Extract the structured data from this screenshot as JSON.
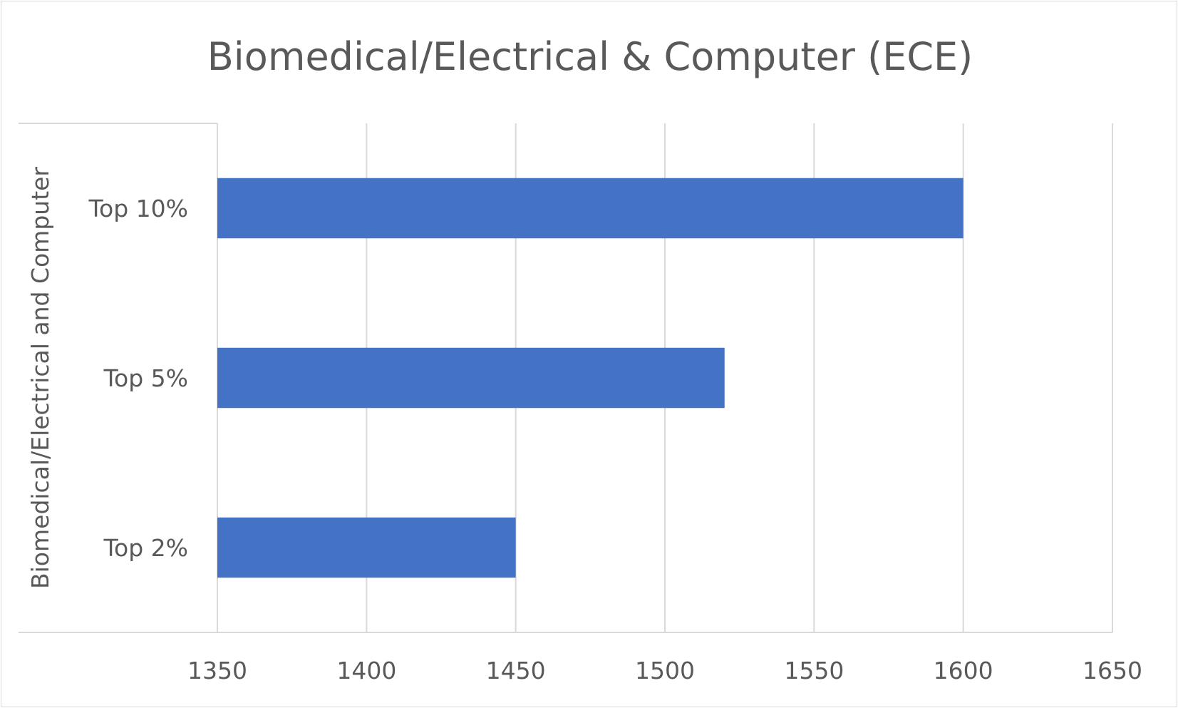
{
  "chart_data": {
    "type": "bar",
    "orientation": "horizontal",
    "title": "Biomedical/Electrical & Computer (ECE)",
    "group_label": "Biomedical/Electrical and Computer",
    "categories": [
      "Top 10%",
      "Top 5%",
      "Top 2%"
    ],
    "values": [
      1600,
      1520,
      1450
    ],
    "xlim": [
      1350,
      1650
    ],
    "xticks": [
      1350,
      1400,
      1450,
      1500,
      1550,
      1600,
      1650
    ],
    "xtick_labels": [
      "1350",
      "1400",
      "1450",
      "1500",
      "1550",
      "1600",
      "1650"
    ],
    "xlabel": "",
    "ylabel": "",
    "grid": true,
    "legend": "none",
    "bar_color": "#4472c4",
    "grid_color": "#d9d9d9",
    "text_color": "#595959"
  }
}
